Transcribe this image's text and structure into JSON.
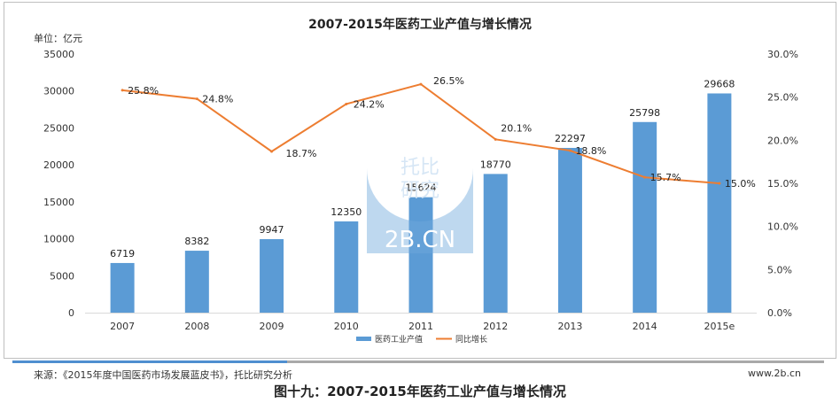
{
  "chart_data": {
    "type": "bar",
    "title": "2007-2015年医药工业产值与增长情况",
    "unit_label": "单位：亿元",
    "categories": [
      "2007",
      "2008",
      "2009",
      "2010",
      "2011",
      "2012",
      "2013",
      "2014",
      "2015e"
    ],
    "series": [
      {
        "name": "医药工业产值",
        "type": "bar",
        "axis": "left",
        "values": [
          6719,
          8382,
          9947,
          12350,
          15624,
          18770,
          22297,
          25798,
          29668
        ],
        "color": "#5b9bd5"
      },
      {
        "name": "同比增长",
        "type": "line",
        "axis": "right",
        "values": [
          25.8,
          24.8,
          18.7,
          24.2,
          26.5,
          20.1,
          18.8,
          15.7,
          15.0
        ],
        "labels": [
          "25.8%",
          "24.8%",
          "18.7%",
          "24.2%",
          "26.5%",
          "20.1%",
          "18.8%",
          "15.7%",
          "15.0%"
        ],
        "color": "#ed7d31"
      }
    ],
    "y_left": {
      "min": 0,
      "max": 35000,
      "ticks": [
        "0",
        "5000",
        "10000",
        "15000",
        "20000",
        "25000",
        "30000",
        "35000"
      ]
    },
    "y_right": {
      "min": 0,
      "max": 30,
      "ticks": [
        "0.0%",
        "5.0%",
        "10.0%",
        "15.0%",
        "20.0%",
        "25.0%",
        "30.0%"
      ]
    },
    "grid": false,
    "legend_position": "bottom"
  },
  "watermark": {
    "line1": "托比",
    "line2": "研究",
    "line3": "2B.CN"
  },
  "footer": {
    "source": "来源：《2015年度中国医药市场发展蓝皮书》，托比研究分析",
    "site": "www.2b.cn",
    "line_colors": [
      "#4f8fd0",
      "#a9a9a9"
    ]
  },
  "caption": "图十九：2007-2015年医药工业产值与增长情况"
}
